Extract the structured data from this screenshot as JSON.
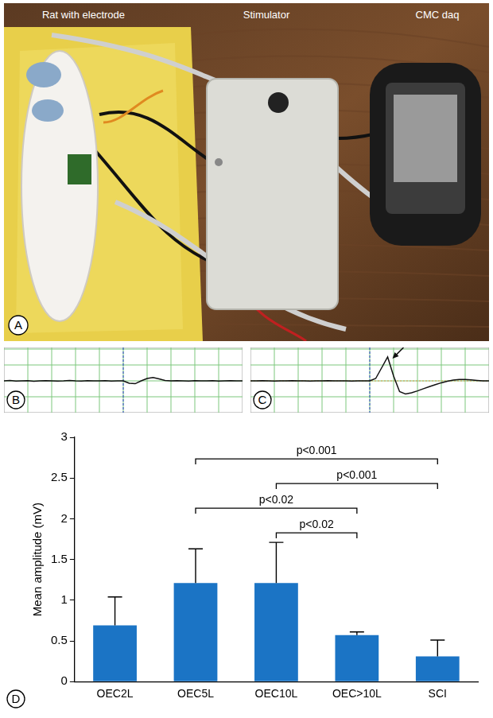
{
  "photo": {
    "panel": "A",
    "labels": [
      "Rat with electrode",
      "Stimulator",
      "CMC daq"
    ]
  },
  "traces": [
    {
      "panel": "B",
      "values": [
        0,
        0.02,
        -0.01,
        0,
        0.01,
        -0.02,
        0,
        0.01,
        0,
        -0.01,
        0,
        0.02,
        0,
        -0.01,
        0.01,
        0,
        0,
        0.01,
        -0.01,
        0,
        0,
        -0.1,
        -0.12,
        0,
        0.1,
        0.14,
        0.08,
        0.02,
        0,
        0.01,
        0,
        -0.01,
        0.01,
        0,
        0,
        0.01,
        -0.01,
        0,
        0.01,
        0,
        0
      ]
    },
    {
      "panel": "C",
      "values": [
        0,
        0,
        0.01,
        0,
        -0.01,
        0,
        0,
        0.01,
        0,
        0,
        -0.01,
        0,
        0,
        0.01,
        0,
        0,
        0,
        -0.01,
        0,
        0,
        0,
        0.1,
        0.55,
        1.0,
        0.2,
        -0.45,
        -0.55,
        -0.5,
        -0.42,
        -0.33,
        -0.24,
        -0.16,
        -0.08,
        -0.02,
        0.03,
        0.06,
        0.06,
        0.04,
        0.02,
        0,
        0
      ]
    }
  ],
  "chart_data": {
    "panel": "D",
    "type": "bar",
    "ylabel": "Mean amplitude (mV)",
    "categories": [
      "OEC2L",
      "OEC5L",
      "OEC10L",
      "OEC>10L",
      "SCI"
    ],
    "values": [
      0.69,
      1.21,
      1.21,
      0.57,
      0.31
    ],
    "errors": [
      0.35,
      0.42,
      0.5,
      0.04,
      0.2
    ],
    "color": "#1b74c5",
    "ylim": [
      0,
      3
    ],
    "yticks": [
      0,
      0.5,
      1,
      1.5,
      2,
      2.5,
      3
    ],
    "grid": false,
    "annotations": [
      {
        "from": "OEC5L",
        "to": "SCI",
        "text": "p<0.001"
      },
      {
        "from": "OEC10L",
        "to": "SCI",
        "text": "p<0.001"
      },
      {
        "from": "OEC5L",
        "to": "OEC>10L",
        "text": "p<0.02"
      },
      {
        "from": "OEC10L",
        "to": "OEC>10L",
        "text": "p<0.02"
      }
    ]
  }
}
